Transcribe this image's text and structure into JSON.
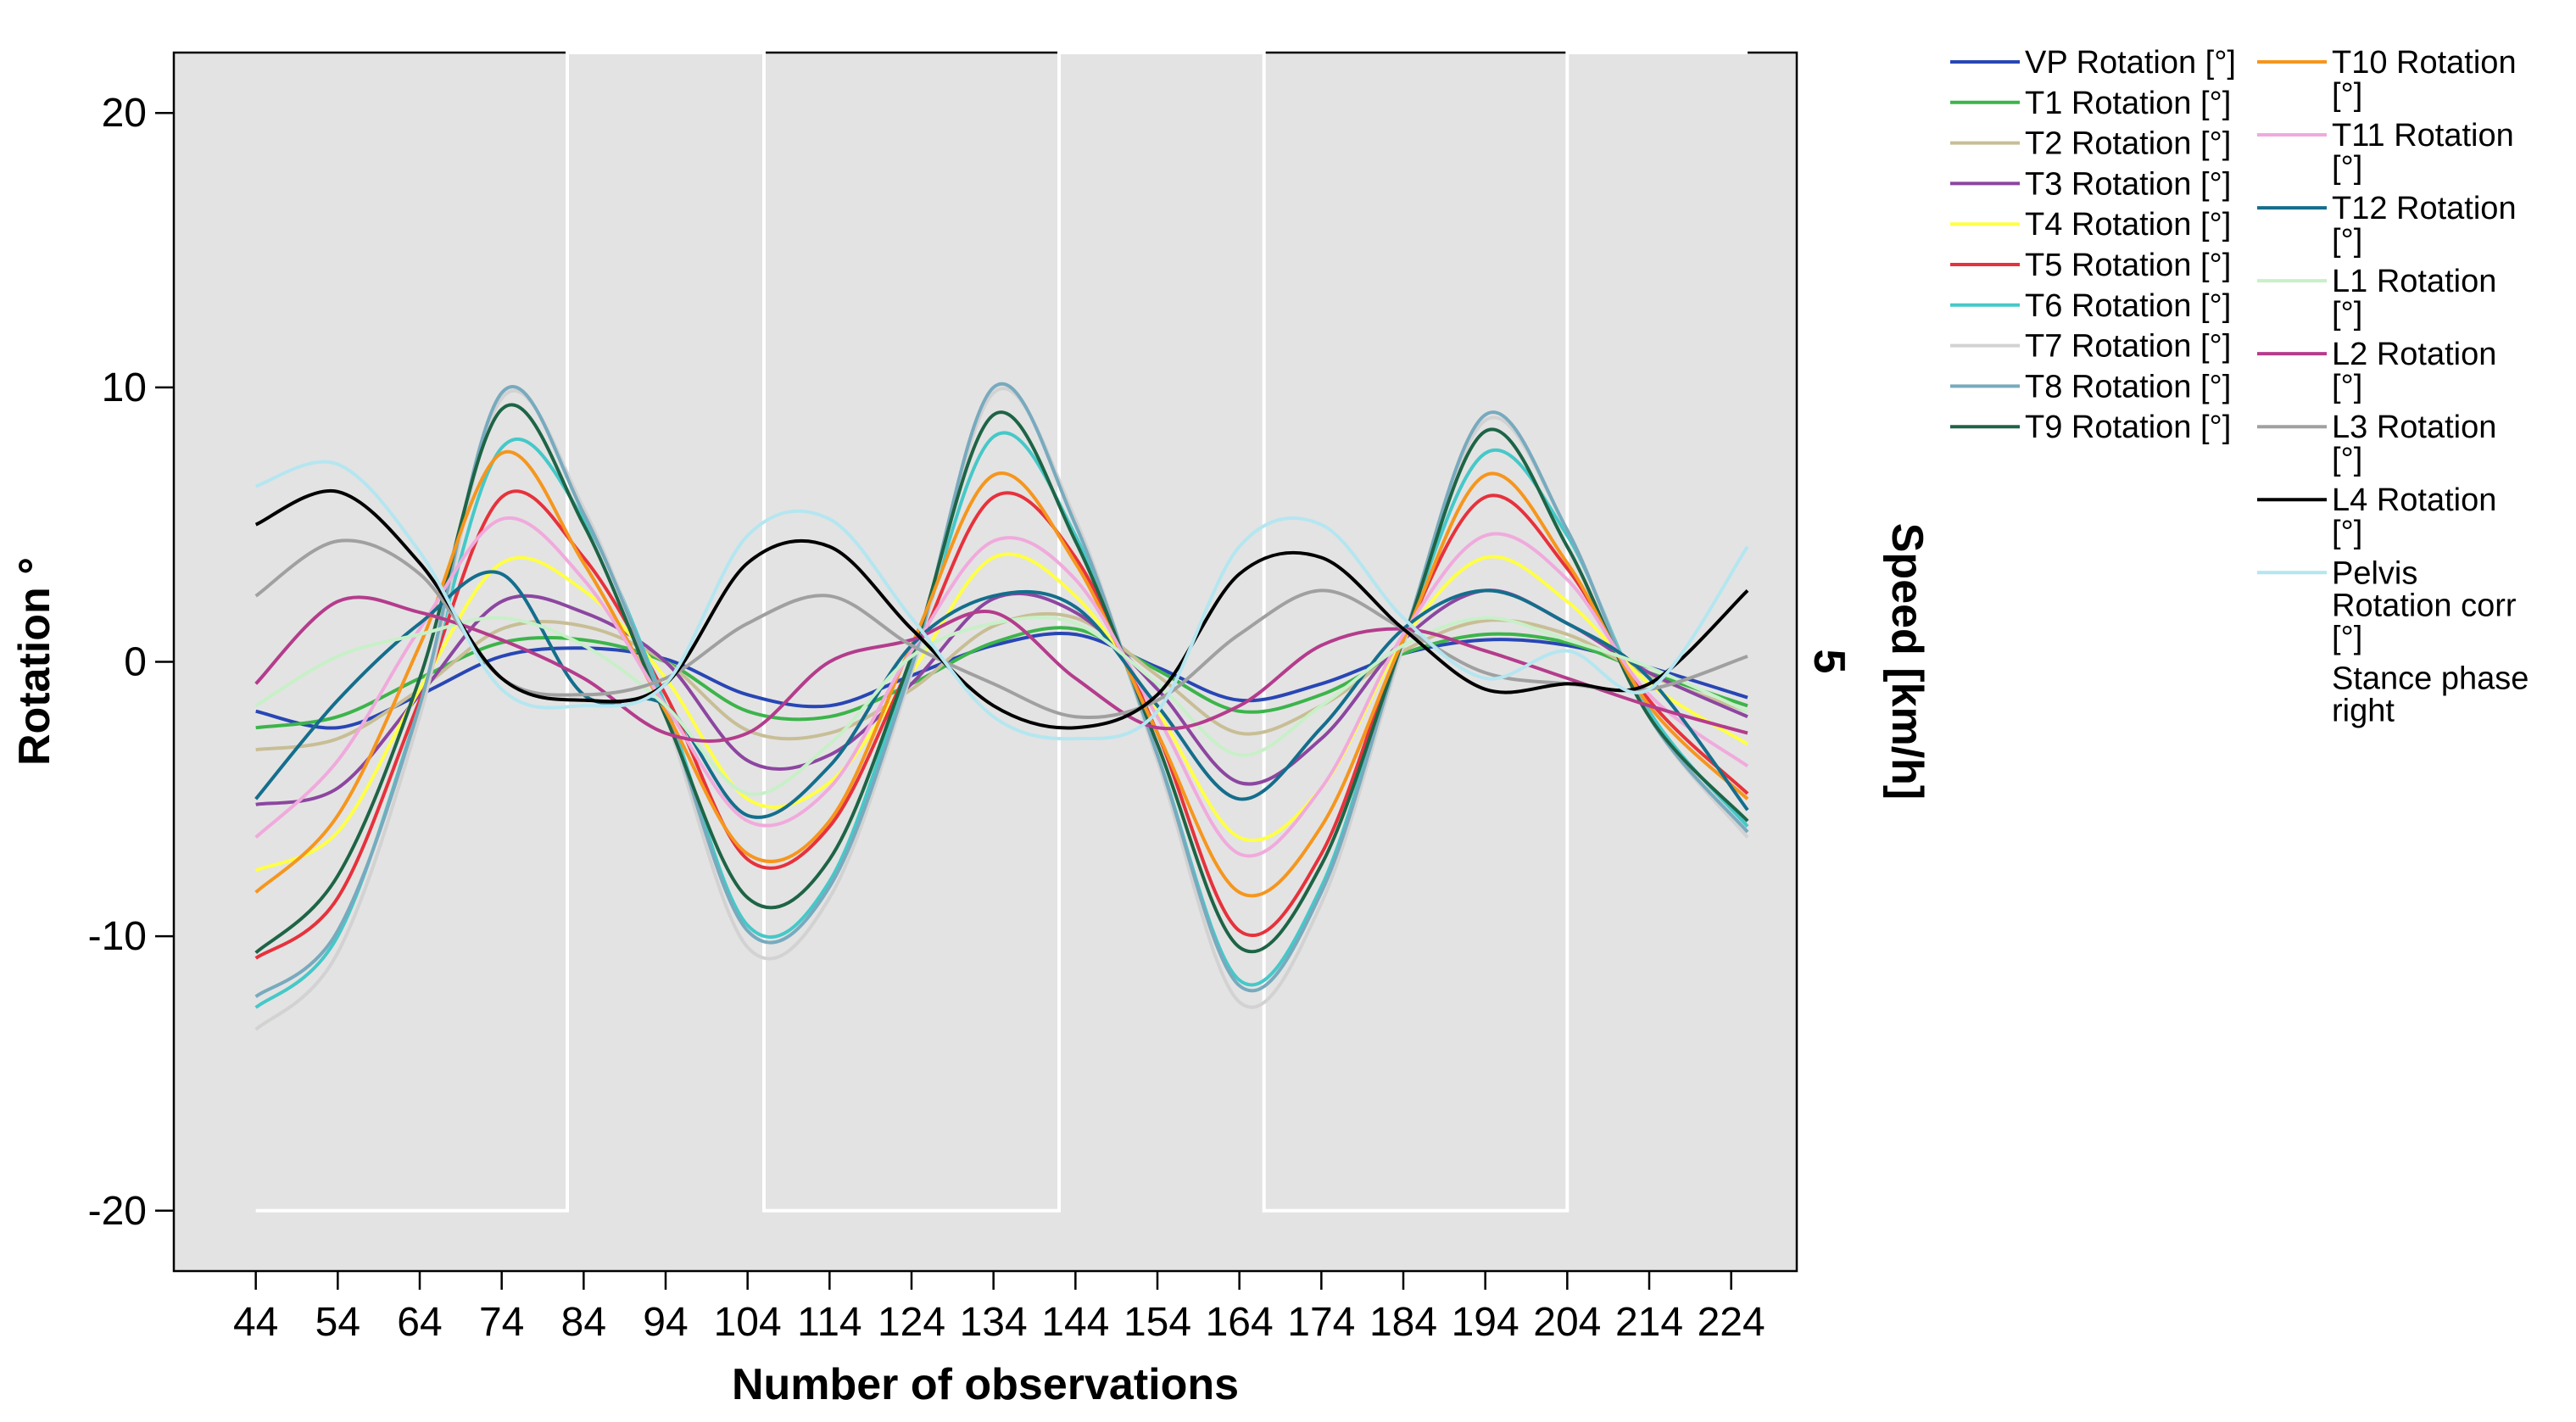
{
  "chart_data": {
    "type": "line",
    "xlabel": "Number of observations",
    "ylabel": "Rotation °",
    "y2label": "Speed [km/h]",
    "y2_value": "5",
    "xlim": [
      34,
      232
    ],
    "ylim": [
      -22.2,
      22.2
    ],
    "x_ticks": [
      44,
      54,
      64,
      74,
      84,
      94,
      104,
      114,
      124,
      134,
      144,
      154,
      164,
      174,
      184,
      194,
      204,
      214,
      224
    ],
    "y_ticks": [
      20,
      10,
      0,
      -10,
      -20
    ],
    "grid": false,
    "legend_position": "right",
    "series": [
      {
        "name": "VP Rotation [°]",
        "color": "#2846b4",
        "x": [
          44,
          54,
          64,
          74,
          84,
          94,
          104,
          114,
          124,
          134,
          144,
          154,
          164,
          174,
          184,
          194,
          204,
          214,
          226
        ],
        "values": [
          -1.8,
          -2.4,
          -1.2,
          0.2,
          0.5,
          0.1,
          -1.2,
          -1.6,
          -0.5,
          0.6,
          1.0,
          -0.2,
          -1.4,
          -0.8,
          0.3,
          0.8,
          0.6,
          -0.2,
          -1.3
        ]
      },
      {
        "name": "T1 Rotation [°]",
        "color": "#3cb44b",
        "x": [
          44,
          54,
          64,
          74,
          84,
          94,
          104,
          114,
          124,
          134,
          144,
          154,
          164,
          174,
          184,
          194,
          204,
          214,
          226
        ],
        "values": [
          -2.4,
          -2.0,
          -0.6,
          0.7,
          0.8,
          0.0,
          -1.8,
          -2.0,
          -0.8,
          0.7,
          1.2,
          -0.3,
          -1.8,
          -1.2,
          0.3,
          1.0,
          0.7,
          -0.4,
          -1.6
        ]
      },
      {
        "name": "T2 Rotation [°]",
        "color": "#c8be96",
        "x": [
          44,
          54,
          64,
          74,
          84,
          94,
          104,
          114,
          124,
          134,
          144,
          154,
          164,
          174,
          184,
          194,
          204,
          214,
          226
        ],
        "values": [
          -3.2,
          -2.8,
          -1.0,
          1.2,
          1.3,
          0.0,
          -2.5,
          -2.6,
          -1.0,
          1.3,
          1.6,
          -0.5,
          -2.6,
          -1.6,
          0.4,
          1.5,
          1.0,
          -0.5,
          -1.8
        ]
      },
      {
        "name": "T3 Rotation [°]",
        "color": "#8c46a0",
        "x": [
          44,
          54,
          64,
          74,
          84,
          94,
          104,
          114,
          124,
          134,
          144,
          154,
          164,
          174,
          184,
          194,
          204,
          214,
          226
        ],
        "values": [
          -5.2,
          -4.6,
          -1.2,
          2.2,
          1.8,
          0.0,
          -3.6,
          -3.4,
          -0.8,
          2.3,
          1.8,
          -1.0,
          -4.4,
          -2.8,
          0.8,
          2.6,
          1.4,
          -0.4,
          -2.0
        ]
      },
      {
        "name": "T4 Rotation [°]",
        "color": "#ffff46",
        "x": [
          44,
          54,
          64,
          74,
          84,
          94,
          104,
          114,
          124,
          134,
          144,
          154,
          164,
          174,
          184,
          194,
          204,
          214,
          226
        ],
        "values": [
          -7.6,
          -6.2,
          -1.0,
          3.6,
          2.6,
          -0.6,
          -5.0,
          -4.4,
          -0.4,
          3.8,
          2.4,
          -1.8,
          -6.4,
          -4.6,
          0.8,
          3.8,
          2.2,
          -0.8,
          -3.0
        ]
      },
      {
        "name": "T5 Rotation [°]",
        "color": "#e6323c",
        "x": [
          44,
          54,
          64,
          74,
          84,
          94,
          104,
          114,
          124,
          134,
          144,
          154,
          164,
          174,
          184,
          194,
          204,
          214,
          226
        ],
        "values": [
          -10.8,
          -8.6,
          -1.4,
          6.0,
          3.8,
          -1.2,
          -7.2,
          -6.0,
          0.0,
          6.0,
          3.8,
          -2.6,
          -9.8,
          -7.0,
          0.8,
          6.0,
          3.4,
          -1.4,
          -4.8
        ]
      },
      {
        "name": "T6 Rotation [°]",
        "color": "#46c8c8",
        "x": [
          44,
          54,
          64,
          74,
          84,
          94,
          104,
          114,
          124,
          134,
          144,
          154,
          164,
          174,
          184,
          194,
          204,
          214,
          226
        ],
        "values": [
          -12.6,
          -10.0,
          -1.6,
          7.8,
          5.2,
          -1.6,
          -9.6,
          -8.0,
          0.0,
          8.2,
          4.6,
          -3.4,
          -11.6,
          -8.2,
          0.8,
          7.6,
          4.6,
          -1.8,
          -6.0
        ]
      },
      {
        "name": "T7 Rotation [°]",
        "color": "#d2d2d2",
        "x": [
          44,
          54,
          64,
          74,
          84,
          94,
          104,
          114,
          124,
          134,
          144,
          154,
          164,
          174,
          184,
          194,
          204,
          214,
          226
        ],
        "values": [
          -13.4,
          -10.6,
          -2.0,
          9.6,
          5.6,
          -2.0,
          -10.4,
          -8.6,
          -0.4,
          9.8,
          5.2,
          -3.6,
          -12.4,
          -8.8,
          0.6,
          8.8,
          4.8,
          -2.0,
          -6.4
        ]
      },
      {
        "name": "T8 Rotation [°]",
        "color": "#78aabe",
        "x": [
          44,
          54,
          64,
          74,
          84,
          94,
          104,
          114,
          124,
          134,
          144,
          154,
          164,
          174,
          184,
          194,
          204,
          214,
          226
        ],
        "values": [
          -12.2,
          -9.8,
          -1.6,
          9.8,
          5.4,
          -1.8,
          -9.8,
          -8.2,
          -0.2,
          10.0,
          5.0,
          -3.4,
          -11.8,
          -8.4,
          0.8,
          9.0,
          4.8,
          -2.0,
          -6.2
        ]
      },
      {
        "name": "T9 Rotation [°]",
        "color": "#1e6446",
        "x": [
          44,
          54,
          64,
          74,
          84,
          94,
          104,
          114,
          124,
          134,
          144,
          154,
          164,
          174,
          184,
          194,
          204,
          214,
          226
        ],
        "values": [
          -10.6,
          -7.8,
          -0.6,
          9.2,
          5.0,
          -2.0,
          -8.6,
          -7.2,
          0.2,
          9.0,
          4.4,
          -3.0,
          -10.4,
          -7.4,
          0.8,
          8.4,
          4.2,
          -2.0,
          -5.8
        ]
      },
      {
        "name": "T10 Rotation [°]",
        "color": "#f5961e",
        "x": [
          44,
          54,
          64,
          74,
          84,
          94,
          104,
          114,
          124,
          134,
          144,
          154,
          164,
          174,
          184,
          194,
          204,
          214,
          226
        ],
        "values": [
          -8.4,
          -5.6,
          0.6,
          7.6,
          3.6,
          -1.8,
          -7.0,
          -5.8,
          0.6,
          6.8,
          3.6,
          -2.6,
          -8.4,
          -6.0,
          0.8,
          6.8,
          3.6,
          -1.6,
          -5.0
        ]
      },
      {
        "name": "T11 Rotation [°]",
        "color": "#f0aadc",
        "x": [
          44,
          54,
          64,
          74,
          84,
          94,
          104,
          114,
          124,
          134,
          144,
          154,
          164,
          174,
          184,
          194,
          204,
          214,
          226
        ],
        "values": [
          -6.4,
          -3.6,
          1.2,
          5.2,
          3.0,
          -1.6,
          -5.8,
          -4.6,
          0.4,
          4.4,
          3.0,
          -2.0,
          -7.0,
          -4.6,
          1.0,
          4.6,
          3.0,
          -1.2,
          -3.8
        ]
      },
      {
        "name": "T12 Rotation [°]",
        "color": "#146e8c",
        "x": [
          44,
          54,
          64,
          74,
          84,
          94,
          104,
          114,
          124,
          134,
          144,
          154,
          164,
          174,
          184,
          194,
          204,
          214,
          226
        ],
        "values": [
          -5.0,
          -1.4,
          1.4,
          3.2,
          -1.2,
          -1.6,
          -5.6,
          -3.8,
          0.6,
          2.4,
          2.0,
          -1.6,
          -5.0,
          -2.4,
          1.2,
          2.6,
          1.4,
          -0.6,
          -5.4
        ]
      },
      {
        "name": "L1 Rotation [°]",
        "color": "#c8f0c8",
        "x": [
          44,
          54,
          64,
          74,
          84,
          94,
          104,
          114,
          124,
          134,
          144,
          154,
          164,
          174,
          184,
          194,
          204,
          214,
          226
        ],
        "values": [
          -1.6,
          0.2,
          1.0,
          1.6,
          0.6,
          -1.6,
          -4.8,
          -3.0,
          0.2,
          1.4,
          1.4,
          -0.8,
          -3.4,
          -1.6,
          0.6,
          1.6,
          0.8,
          -0.2,
          -1.8
        ]
      },
      {
        "name": "L2 Rotation [°]",
        "color": "#b43c8c",
        "x": [
          44,
          54,
          64,
          74,
          84,
          94,
          104,
          114,
          124,
          134,
          144,
          154,
          164,
          174,
          184,
          194,
          204,
          214,
          226
        ],
        "values": [
          -0.8,
          2.2,
          1.8,
          0.8,
          -0.6,
          -2.6,
          -2.6,
          0.0,
          0.8,
          1.8,
          -0.6,
          -2.4,
          -1.6,
          0.6,
          1.2,
          0.4,
          -0.6,
          -1.6,
          -2.6
        ]
      },
      {
        "name": "L3 Rotation [°]",
        "color": "#a0a0a0",
        "x": [
          44,
          54,
          64,
          74,
          84,
          94,
          104,
          114,
          124,
          134,
          144,
          154,
          164,
          174,
          184,
          194,
          204,
          214,
          226
        ],
        "values": [
          2.4,
          4.4,
          3.2,
          -0.6,
          -1.2,
          -0.6,
          1.4,
          2.4,
          0.6,
          -0.8,
          -2.0,
          -1.4,
          1.0,
          2.6,
          1.2,
          -0.4,
          -0.8,
          -1.0,
          0.2
        ]
      },
      {
        "name": "L4 Rotation [°]",
        "color": "#000000",
        "x": [
          44,
          54,
          64,
          74,
          84,
          94,
          104,
          114,
          124,
          134,
          144,
          154,
          164,
          174,
          184,
          194,
          204,
          214,
          226
        ],
        "values": [
          5.0,
          6.2,
          3.6,
          -0.6,
          -1.4,
          -0.8,
          3.6,
          4.2,
          1.2,
          -1.6,
          -2.4,
          -1.2,
          3.2,
          3.8,
          1.2,
          -1.0,
          -0.8,
          -0.8,
          2.6
        ]
      },
      {
        "name": "Pelvis Rotation corr [°]",
        "color": "#b4e6f0",
        "x": [
          44,
          54,
          64,
          74,
          84,
          94,
          104,
          114,
          124,
          134,
          144,
          154,
          164,
          174,
          184,
          194,
          204,
          214,
          226
        ],
        "values": [
          6.4,
          7.2,
          4.0,
          -1.0,
          -1.6,
          -0.8,
          4.6,
          5.2,
          1.6,
          -2.0,
          -2.8,
          -1.8,
          4.2,
          5.0,
          1.6,
          -0.6,
          0.4,
          -1.0,
          4.2
        ]
      }
    ],
    "stance_phase": {
      "name": "Stance phase right",
      "color": "#ffffff",
      "x": [
        44,
        82,
        82,
        106,
        106,
        142,
        142,
        167,
        167,
        204,
        204,
        226
      ],
      "values": [
        -20,
        -20,
        22.2,
        22.2,
        -20,
        -20,
        22.2,
        22.2,
        -20,
        -20,
        22.2,
        22.2
      ]
    }
  }
}
